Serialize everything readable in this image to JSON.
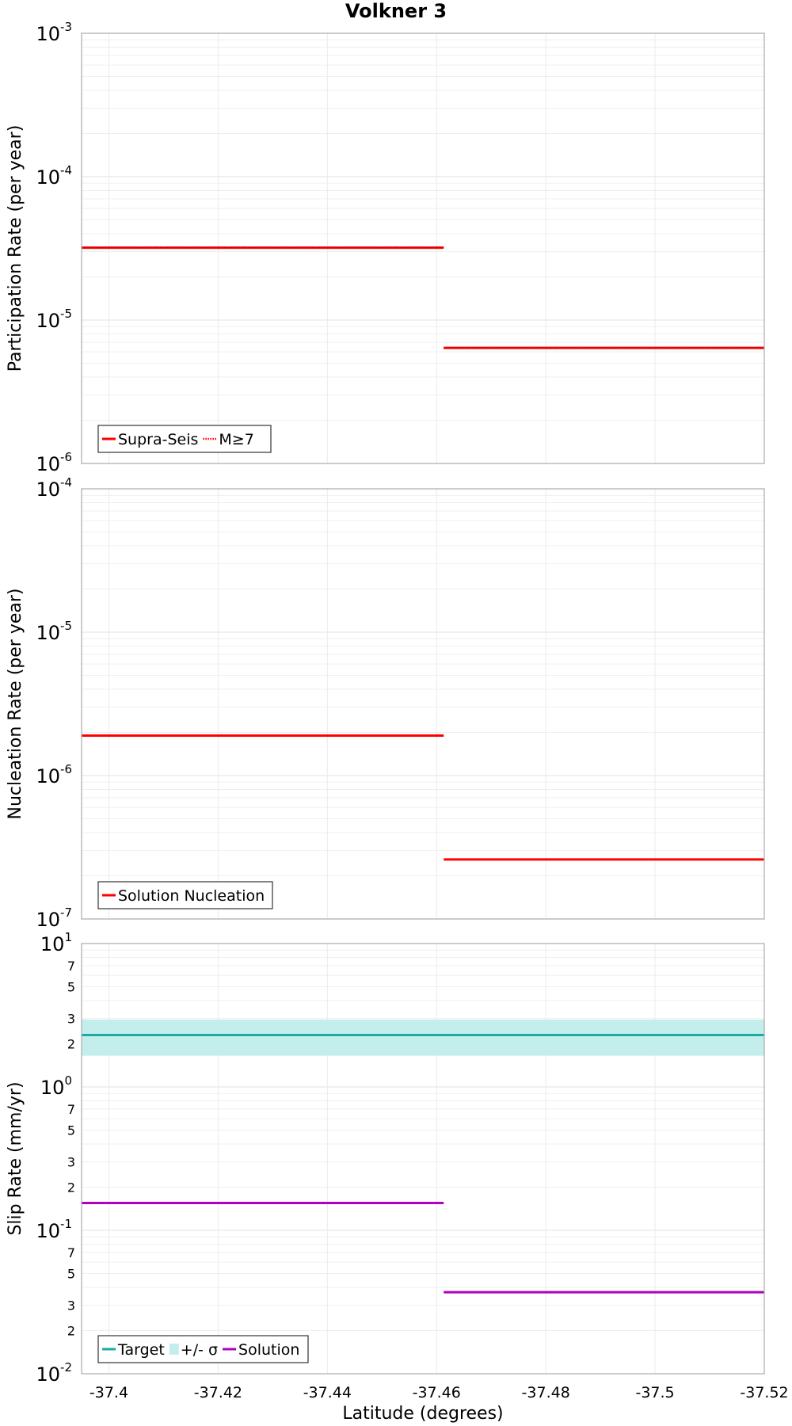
{
  "chart_data": [
    {
      "type": "line",
      "title": "Volkner 3",
      "ylabel": "Participation Rate (per year)",
      "xlabel": "",
      "yscale": "log",
      "ylim": [
        1e-06,
        0.001
      ],
      "xlim": [
        -37.395,
        -37.52
      ],
      "x_ticks": [
        "-37.4",
        "-37.42",
        "-37.44",
        "-37.46",
        "-37.48",
        "-37.5",
        "-37.52"
      ],
      "y_ticks": [
        {
          "base": "10",
          "exp": "-6"
        },
        {
          "base": "10",
          "exp": "-5"
        },
        {
          "base": "10",
          "exp": "-4"
        },
        {
          "base": "10",
          "exp": "-3"
        }
      ],
      "legend_position": "bottom-left",
      "series": [
        {
          "name": "Supra-Seis",
          "color": "#ff0000",
          "dash": "solid",
          "segments": [
            {
              "x": [
                -37.395,
                -37.4613
              ],
              "y": 3.2e-05
            },
            {
              "x": [
                -37.4613,
                -37.52
              ],
              "y": 6.4e-06
            }
          ]
        },
        {
          "name": "M≥7",
          "color": "#ff0000",
          "dash": "dotted",
          "segments": [
            {
              "x": [
                -37.395,
                -37.4613
              ],
              "y": 3.2e-05
            },
            {
              "x": [
                -37.4613,
                -37.52
              ],
              "y": 6.4e-06
            }
          ]
        }
      ]
    },
    {
      "type": "line",
      "title": "",
      "ylabel": "Nucleation Rate (per year)",
      "xlabel": "",
      "yscale": "log",
      "ylim": [
        1e-07,
        0.0001
      ],
      "xlim": [
        -37.395,
        -37.52
      ],
      "x_ticks": [
        "-37.4",
        "-37.42",
        "-37.44",
        "-37.46",
        "-37.48",
        "-37.5",
        "-37.52"
      ],
      "y_ticks": [
        {
          "base": "10",
          "exp": "-7"
        },
        {
          "base": "10",
          "exp": "-6"
        },
        {
          "base": "10",
          "exp": "-5"
        },
        {
          "base": "10",
          "exp": "-4"
        }
      ],
      "legend_position": "bottom-left",
      "series": [
        {
          "name": "Solution Nucleation",
          "color": "#ff0000",
          "dash": "solid",
          "segments": [
            {
              "x": [
                -37.395,
                -37.4613
              ],
              "y": 1.9e-06
            },
            {
              "x": [
                -37.4613,
                -37.52
              ],
              "y": 2.6e-07
            }
          ]
        }
      ]
    },
    {
      "type": "line",
      "title": "",
      "ylabel": "Slip Rate (mm/yr)",
      "xlabel": "Latitude (degrees)",
      "yscale": "log",
      "ylim": [
        0.01,
        10
      ],
      "xlim": [
        -37.395,
        -37.52
      ],
      "x_ticks": [
        "-37.4",
        "-37.42",
        "-37.44",
        "-37.46",
        "-37.48",
        "-37.5",
        "-37.52"
      ],
      "y_ticks": [
        {
          "base": "10",
          "exp": "-2"
        },
        {
          "base": "10",
          "exp": "-1"
        },
        {
          "base": "10",
          "exp": "0"
        },
        {
          "base": "10",
          "exp": "1"
        }
      ],
      "minor_tick_labels": [
        "2",
        "3",
        "5",
        "7"
      ],
      "legend_position": "bottom-left",
      "series": [
        {
          "name": "Target",
          "color": "#1aaba3",
          "dash": "solid",
          "segments": [
            {
              "x": [
                -37.395,
                -37.52
              ],
              "y": 2.3
            }
          ]
        },
        {
          "name": "+/- σ",
          "color": "#c4eeeb",
          "type": "band",
          "band": {
            "x": [
              -37.395,
              -37.52
            ],
            "low": 1.65,
            "high": 2.95
          }
        },
        {
          "name": "Solution",
          "color": "#b000c0",
          "dash": "solid",
          "segments": [
            {
              "x": [
                -37.395,
                -37.4613
              ],
              "y": 0.155
            },
            {
              "x": [
                -37.4613,
                -37.52
              ],
              "y": 0.037
            }
          ]
        }
      ]
    }
  ]
}
